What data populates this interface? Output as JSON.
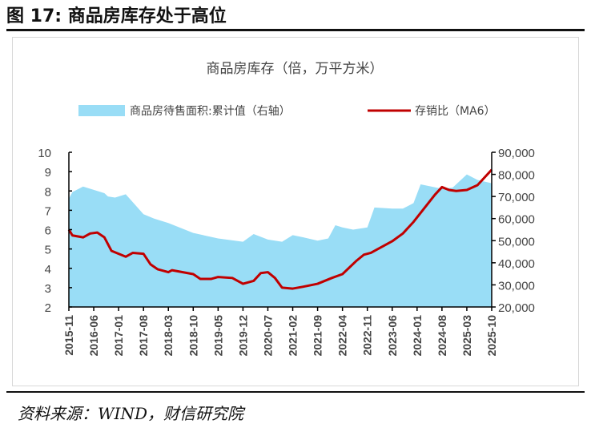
{
  "figure_title": "图 17:  商品房库存处于高位",
  "source": "资料来源：WIND，财信研究院",
  "colors": {
    "area": "#99DDF6",
    "line": "#C00000"
  },
  "chart_data": {
    "type": "area+line",
    "title": "商品房库存（倍，万平方米）",
    "legend_position": "top",
    "x_ticks": [
      "2015-11",
      "2016-06",
      "2017-01",
      "2017-08",
      "2018-03",
      "2018-10",
      "2019-05",
      "2019-12",
      "2020-07",
      "2021-02",
      "2021-09",
      "2022-04",
      "2022-11",
      "2023-06",
      "2024-01",
      "2024-08",
      "2025-03",
      "2025-10"
    ],
    "y_left": {
      "range": [
        2,
        10
      ],
      "ticks": [
        "2",
        "3",
        "4",
        "5",
        "6",
        "7",
        "8",
        "9",
        "10"
      ]
    },
    "y_right": {
      "range": [
        20000,
        90000
      ],
      "ticks": [
        "20,000",
        "30,000",
        "40,000",
        "50,000",
        "60,000",
        "70,000",
        "80,000",
        "90,000"
      ]
    },
    "grid": false,
    "series": [
      {
        "name": "商品房待售面积:累计值（右轴）",
        "type": "area",
        "axis": "right",
        "points": [
          [
            "2015-11",
            69000
          ],
          [
            "2015-12",
            72000
          ],
          [
            "2016-03",
            74500
          ],
          [
            "2016-06",
            73000
          ],
          [
            "2016-09",
            71500
          ],
          [
            "2016-10",
            70000
          ],
          [
            "2016-12",
            69500
          ],
          [
            "2017-02",
            70500
          ],
          [
            "2017-03",
            71000
          ],
          [
            "2017-08",
            62000
          ],
          [
            "2017-11",
            60000
          ],
          [
            "2018-03",
            58000
          ],
          [
            "2018-10",
            53500
          ],
          [
            "2019-05",
            51000
          ],
          [
            "2019-12",
            49500
          ],
          [
            "2020-03",
            53000
          ],
          [
            "2020-07",
            50500
          ],
          [
            "2020-11",
            49500
          ],
          [
            "2021-02",
            52500
          ],
          [
            "2021-05",
            51500
          ],
          [
            "2021-09",
            50000
          ],
          [
            "2021-12",
            51000
          ],
          [
            "2022-02",
            57000
          ],
          [
            "2022-04",
            56000
          ],
          [
            "2022-07",
            55000
          ],
          [
            "2022-11",
            56000
          ],
          [
            "2023-01",
            65000
          ],
          [
            "2023-06",
            64500
          ],
          [
            "2023-09",
            64500
          ],
          [
            "2023-12",
            67000
          ],
          [
            "2024-02",
            75500
          ],
          [
            "2024-08",
            73500
          ],
          [
            "2024-11",
            74000
          ],
          [
            "2025-03",
            80000
          ],
          [
            "2025-06",
            77500
          ],
          [
            "2025-10",
            76000
          ]
        ]
      },
      {
        "name": "存销比（MA6）",
        "type": "line",
        "axis": "left",
        "points": [
          [
            "2015-11",
            6.0
          ],
          [
            "2015-12",
            5.7
          ],
          [
            "2016-03",
            5.6
          ],
          [
            "2016-05",
            5.8
          ],
          [
            "2016-07",
            5.85
          ],
          [
            "2016-09",
            5.6
          ],
          [
            "2016-11",
            4.9
          ],
          [
            "2017-01",
            4.75
          ],
          [
            "2017-03",
            4.6
          ],
          [
            "2017-05",
            4.8
          ],
          [
            "2017-08",
            4.75
          ],
          [
            "2017-10",
            4.2
          ],
          [
            "2017-12",
            3.95
          ],
          [
            "2018-03",
            3.8
          ],
          [
            "2018-04",
            3.9
          ],
          [
            "2018-10",
            3.7
          ],
          [
            "2018-12",
            3.45
          ],
          [
            "2019-03",
            3.45
          ],
          [
            "2019-05",
            3.55
          ],
          [
            "2019-09",
            3.5
          ],
          [
            "2019-12",
            3.2
          ],
          [
            "2020-03",
            3.35
          ],
          [
            "2020-05",
            3.75
          ],
          [
            "2020-07",
            3.8
          ],
          [
            "2020-09",
            3.5
          ],
          [
            "2020-11",
            3.0
          ],
          [
            "2021-02",
            2.95
          ],
          [
            "2021-05",
            3.05
          ],
          [
            "2021-09",
            3.2
          ],
          [
            "2022-01",
            3.5
          ],
          [
            "2022-04",
            3.7
          ],
          [
            "2022-08",
            4.4
          ],
          [
            "2022-10",
            4.7
          ],
          [
            "2022-12",
            4.8
          ],
          [
            "2023-06",
            5.4
          ],
          [
            "2023-09",
            5.8
          ],
          [
            "2023-12",
            6.4
          ],
          [
            "2024-03",
            7.1
          ],
          [
            "2024-06",
            7.8
          ],
          [
            "2024-08",
            8.2
          ],
          [
            "2024-10",
            8.05
          ],
          [
            "2024-12",
            8.0
          ],
          [
            "2025-03",
            8.05
          ],
          [
            "2025-06",
            8.3
          ],
          [
            "2025-08",
            8.7
          ],
          [
            "2025-10",
            9.1
          ]
        ]
      }
    ]
  }
}
